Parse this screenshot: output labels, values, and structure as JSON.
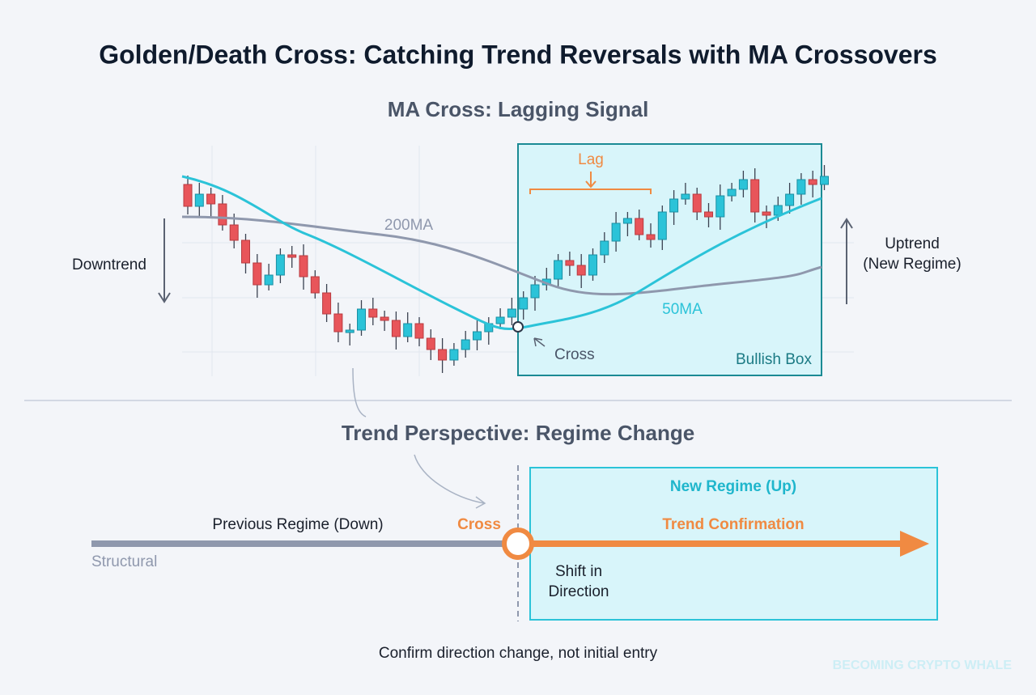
{
  "title": "Golden/Death Cross: Catching Trend Reversals with MA Crossovers",
  "top_panel": {
    "title": "MA Cross: Lagging Signal",
    "lag": "Lag",
    "ma200": "200MA",
    "ma50": "50MA",
    "downtrend": "Downtrend",
    "uptrend": [
      "Uptrend",
      "(New Regime)"
    ],
    "cross": "Cross",
    "box": "Bullish Box"
  },
  "bottom_panel": {
    "title": "Trend Perspective: Regime Change",
    "previous": "Previous Regime (Down)",
    "structural": "Structural",
    "cross": "Cross",
    "new_regime": "New Regime (Up)",
    "confirmation": "Trend Confirmation",
    "shift": [
      "Shift in",
      "Direction"
    ]
  },
  "footer": "Confirm direction change, not initial entry",
  "watermark": "BECOMING CRYPTO WHALE"
}
